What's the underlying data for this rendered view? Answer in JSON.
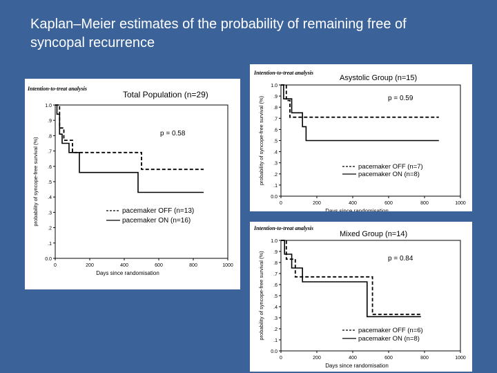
{
  "slide": {
    "title_line1": "Kaplan–Meier estimates of the probability of remaining free of",
    "title_line2": "syncopal recurrence",
    "background": "#3b639a"
  },
  "chart_data": [
    {
      "type": "line",
      "panel_label": "Intention-to-treat analysis",
      "title": "Total Population (n=29)",
      "xlabel": "Days since randomisation",
      "ylabel": "probability of syncope-free survival (%)",
      "xlim": [
        0,
        1000
      ],
      "ylim": [
        0,
        1.0
      ],
      "x_ticks": [
        0,
        200,
        400,
        600,
        800,
        1000
      ],
      "x_tick_labels": [
        "0",
        "200",
        "400",
        "600",
        "800",
        "1000"
      ],
      "y_ticks": [
        0,
        0.1,
        0.2,
        0.3,
        0.4,
        0.5,
        0.6,
        0.7,
        0.8,
        0.9,
        1.0
      ],
      "y_tick_labels": [
        "0.0",
        ".1",
        ".2",
        ".3",
        ".4",
        ".5",
        ".6",
        ".7",
        ".8",
        ".9",
        "1.0"
      ],
      "p_value": "p = 0.58",
      "series": [
        {
          "name": "pacemaker OFF (n=13)",
          "style": "dashed",
          "x": [
            0,
            25,
            25,
            50,
            50,
            100,
            100,
            500,
            500,
            860
          ],
          "y": [
            1.0,
            1.0,
            0.85,
            0.85,
            0.77,
            0.77,
            0.69,
            0.69,
            0.58,
            0.58
          ]
        },
        {
          "name": "pacemaker ON (n=16)",
          "style": "solid",
          "x": [
            0,
            10,
            10,
            25,
            25,
            40,
            40,
            80,
            80,
            140,
            140,
            480,
            480,
            860
          ],
          "y": [
            1.0,
            1.0,
            0.94,
            0.94,
            0.81,
            0.81,
            0.75,
            0.75,
            0.69,
            0.69,
            0.56,
            0.56,
            0.43,
            0.43
          ]
        }
      ]
    },
    {
      "type": "line",
      "panel_label": "Intention-to-treat analysis",
      "title": "Asystolic Group (n=15)",
      "xlabel": "Days since randomisation",
      "ylabel": "probability of syncope-free survival (%)",
      "xlim": [
        0,
        1000
      ],
      "ylim": [
        0,
        1.0
      ],
      "x_ticks": [
        0,
        200,
        400,
        600,
        800,
        1000
      ],
      "x_tick_labels": [
        "0",
        "200",
        "400",
        "600",
        "800",
        "1000"
      ],
      "y_ticks": [
        0,
        0.1,
        0.2,
        0.3,
        0.4,
        0.5,
        0.6,
        0.7,
        0.8,
        0.9,
        1.0
      ],
      "y_tick_labels": [
        "0.0",
        ".1",
        ".2",
        ".3",
        ".4",
        ".5",
        ".6",
        ".7",
        ".8",
        ".9",
        "1.0"
      ],
      "p_value": "p = 0.59",
      "series": [
        {
          "name": "pacemaker OFF (n=7)",
          "style": "dashed",
          "x": [
            0,
            30,
            30,
            50,
            50,
            110,
            110,
            880
          ],
          "y": [
            1.0,
            1.0,
            0.86,
            0.86,
            0.71,
            0.71,
            0.71,
            0.71
          ]
        },
        {
          "name": "pacemaker ON (n=8)",
          "style": "solid",
          "x": [
            0,
            15,
            15,
            60,
            60,
            120,
            120,
            140,
            140,
            880
          ],
          "y": [
            1.0,
            1.0,
            0.875,
            0.875,
            0.75,
            0.75,
            0.625,
            0.625,
            0.5,
            0.5
          ]
        }
      ]
    },
    {
      "type": "line",
      "panel_label": "Intention-to-treat analysis",
      "title": "Mixed Group (n=14)",
      "xlabel": "Days since randomisation",
      "ylabel": "probability of syncope-free survival (%)",
      "xlim": [
        0,
        1000
      ],
      "ylim": [
        0,
        1.0
      ],
      "x_ticks": [
        0,
        200,
        400,
        600,
        800,
        1000
      ],
      "x_tick_labels": [
        "0",
        "200",
        "400",
        "600",
        "800",
        "1000"
      ],
      "y_ticks": [
        0,
        0.1,
        0.2,
        0.3,
        0.4,
        0.5,
        0.6,
        0.7,
        0.8,
        0.9,
        1.0
      ],
      "y_tick_labels": [
        "0.0",
        ".1",
        ".2",
        ".3",
        ".4",
        ".5",
        ".6",
        ".7",
        ".8",
        ".9",
        "1.0"
      ],
      "p_value": "p = 0.84",
      "series": [
        {
          "name": "pacemaker OFF (n=6)",
          "style": "dashed",
          "x": [
            0,
            30,
            30,
            80,
            80,
            140,
            140,
            510,
            510,
            780
          ],
          "y": [
            1.0,
            1.0,
            0.83,
            0.83,
            0.67,
            0.67,
            0.67,
            0.67,
            0.33,
            0.33
          ]
        },
        {
          "name": "pacemaker ON (n=8)",
          "style": "solid",
          "x": [
            0,
            20,
            20,
            60,
            60,
            120,
            120,
            480,
            480,
            780
          ],
          "y": [
            1.0,
            1.0,
            0.875,
            0.875,
            0.75,
            0.75,
            0.625,
            0.625,
            0.31,
            0.31
          ]
        }
      ]
    }
  ]
}
